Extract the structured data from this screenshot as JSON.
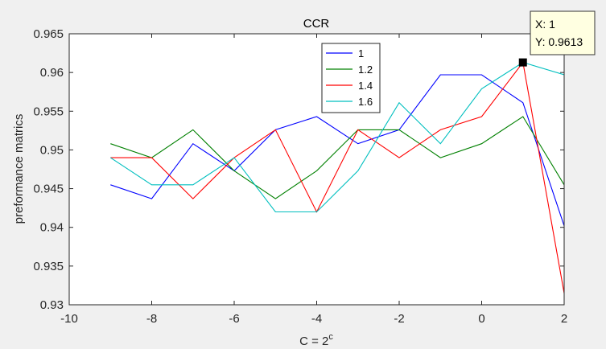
{
  "colors": {
    "figure_bg": "#f0f0f0",
    "axes_bg": "#ffffff",
    "axis_line": "#262626",
    "datatip_bg": "#ffffe1",
    "datatip_marker": "#000000"
  },
  "chart_data": {
    "type": "line",
    "title": "CCR",
    "xlabel_base": "C = 2",
    "xlabel_sup": "c",
    "ylabel": "preformance matrics",
    "xlim": [
      -10,
      2
    ],
    "ylim": [
      0.93,
      0.965
    ],
    "xticks": [
      -10,
      -8,
      -6,
      -4,
      -2,
      0,
      2
    ],
    "yticks": [
      0.93,
      0.935,
      0.94,
      0.945,
      0.95,
      0.955,
      0.96,
      0.965
    ],
    "xtick_labels": [
      "-10",
      "-8",
      "-6",
      "-4",
      "-2",
      "0",
      "2"
    ],
    "ytick_labels": [
      "0.93",
      "0.935",
      "0.94",
      "0.945",
      "0.95",
      "0.955",
      "0.96",
      "0.965"
    ],
    "grid": false,
    "legend_position": "top-center",
    "x": [
      -9,
      -8,
      -7,
      -6,
      -5,
      -4,
      -3,
      -2,
      -1,
      0,
      1,
      2
    ],
    "series": [
      {
        "name": "1",
        "color": "#0000ff",
        "values": [
          0.9455,
          0.9437,
          0.9508,
          0.9473,
          0.9526,
          0.9543,
          0.9508,
          0.9526,
          0.9597,
          0.9597,
          0.9561,
          0.9402
        ]
      },
      {
        "name": "1.2",
        "color": "#008000",
        "values": [
          0.9508,
          0.949,
          0.9526,
          0.9473,
          0.9437,
          0.9473,
          0.9526,
          0.9526,
          0.949,
          0.9508,
          0.9543,
          0.9455
        ]
      },
      {
        "name": "1.4",
        "color": "#ff0000",
        "values": [
          0.949,
          0.949,
          0.9437,
          0.949,
          0.9526,
          0.942,
          0.9526,
          0.949,
          0.9526,
          0.9543,
          0.9613,
          0.9315
        ]
      },
      {
        "name": "1.6",
        "color": "#00bfbf",
        "values": [
          0.949,
          0.9455,
          0.9455,
          0.949,
          0.942,
          0.942,
          0.9473,
          0.9561,
          0.9508,
          0.9579,
          0.9613,
          0.9597
        ]
      }
    ],
    "datatip": {
      "x": 1,
      "y": 0.9613,
      "line1": "X: 1",
      "line2": "Y: 0.9613"
    }
  }
}
